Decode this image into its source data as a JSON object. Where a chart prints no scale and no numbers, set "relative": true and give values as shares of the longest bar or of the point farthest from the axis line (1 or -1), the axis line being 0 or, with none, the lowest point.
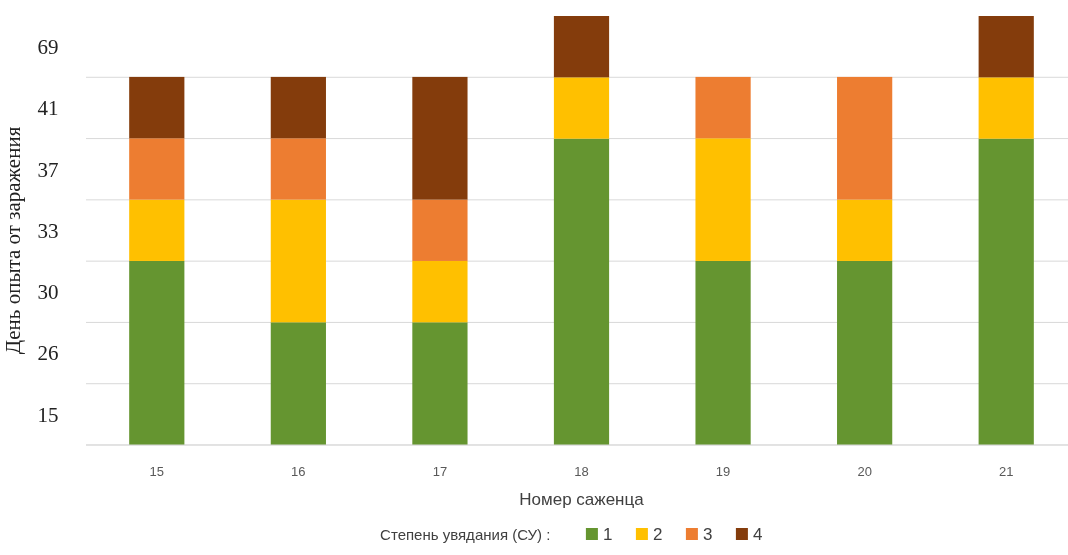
{
  "chart_data": {
    "type": "bar",
    "stacked": true,
    "relative": true,
    "categories": [
      "15",
      "16",
      "17",
      "18",
      "19",
      "20",
      "21"
    ],
    "series": [
      {
        "name": "1",
        "color": "#659530",
        "values": [
          0.429,
          0.286,
          0.286,
          0.714,
          0.429,
          0.429,
          0.714
        ]
      },
      {
        "name": "2",
        "color": "#ffc000",
        "values": [
          0.143,
          0.286,
          0.143,
          0.143,
          0.286,
          0.143,
          0.143
        ]
      },
      {
        "name": "3",
        "color": "#ed7d31",
        "values": [
          0.143,
          0.143,
          0.143,
          0,
          0.143,
          0.286,
          0
        ]
      },
      {
        "name": "4",
        "color": "#843c0c",
        "values": [
          0.143,
          0.143,
          0.286,
          0.143,
          0,
          0,
          0.143
        ]
      }
    ],
    "xlabel": "Номер саженца",
    "ylabel": "День опыта от заражения",
    "legend_title": "Степень увядания (СУ) :",
    "annotations": [
      "15",
      "26",
      "30",
      "33",
      "37",
      "41",
      "69"
    ],
    "grid": "y",
    "legend": "bottom"
  }
}
